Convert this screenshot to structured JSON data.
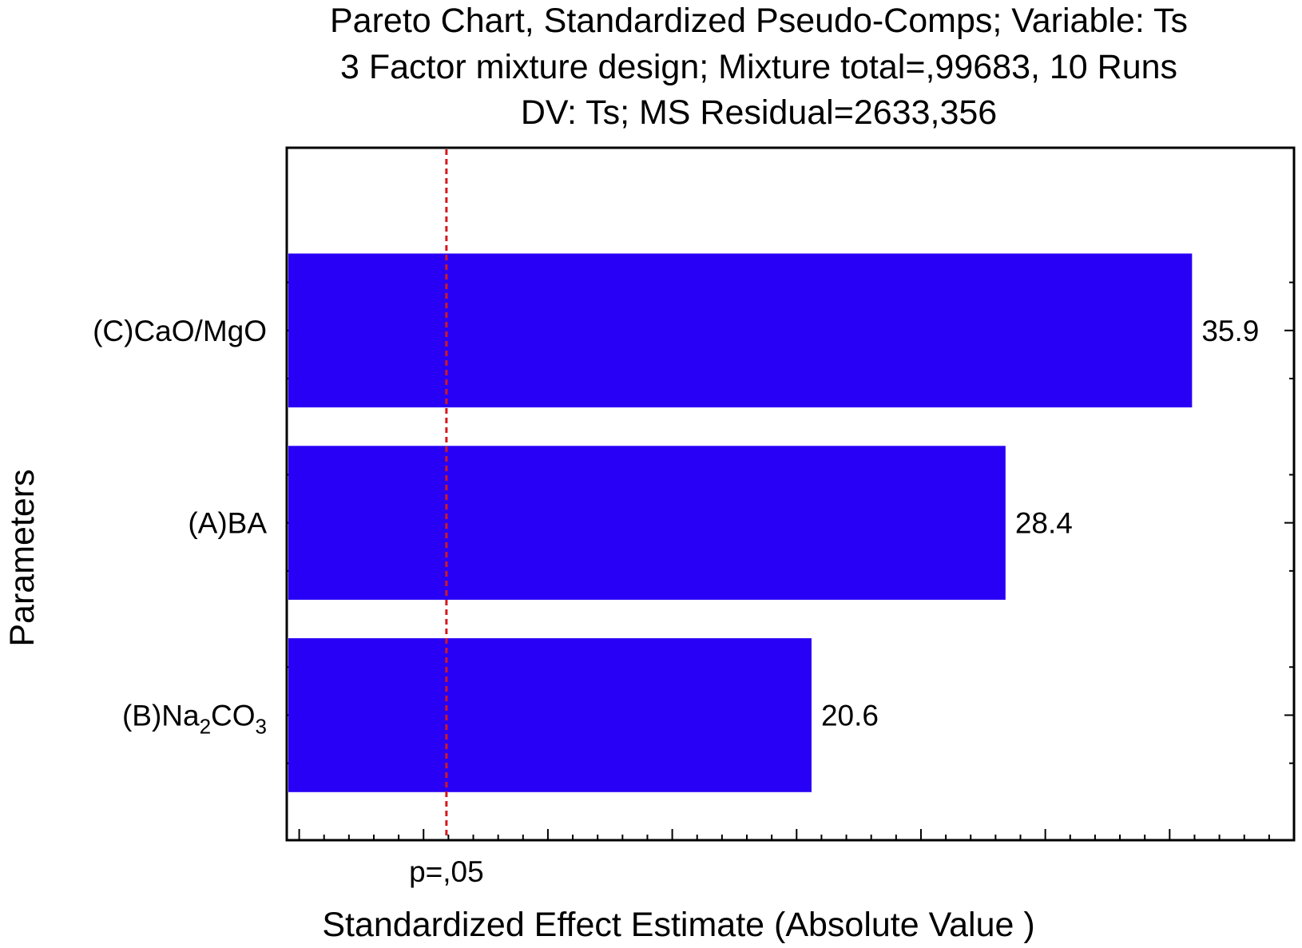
{
  "chart_data": {
    "type": "bar",
    "orientation": "horizontal",
    "title_lines": [
      "Pareto Chart, Standardized Pseudo-Comps; Variable: Ts",
      "3 Factor mixture design; Mixture total=,99683, 10 Runs",
      "DV: Ts; MS Residual=2633,356"
    ],
    "xlabel": "Standardized Effect Estimate (Absolute Value )",
    "ylabel": "Parameters",
    "categories": [
      {
        "prefix": "(C)CaO/MgO",
        "parts": [
          {
            "t": "(C)CaO/MgO",
            "sub": false
          }
        ]
      },
      {
        "prefix": "(A)BA",
        "parts": [
          {
            "t": "(A)BA",
            "sub": false
          }
        ]
      },
      {
        "prefix": "(B)Na2CO3",
        "parts": [
          {
            "t": "(B)Na",
            "sub": false
          },
          {
            "t": "2",
            "sub": true
          },
          {
            "t": "CO",
            "sub": false
          },
          {
            "t": "3",
            "sub": true
          }
        ]
      }
    ],
    "values": [
      35.9,
      28.4,
      20.6
    ],
    "value_labels": [
      "35.9",
      "28.4",
      "20.6"
    ],
    "xlim": [
      -0.5,
      40
    ],
    "reference_line": {
      "value": 5.92,
      "label": "p=,05"
    },
    "bar_color": "#2800f5",
    "reference_color": "#d2191e",
    "grid": false
  }
}
